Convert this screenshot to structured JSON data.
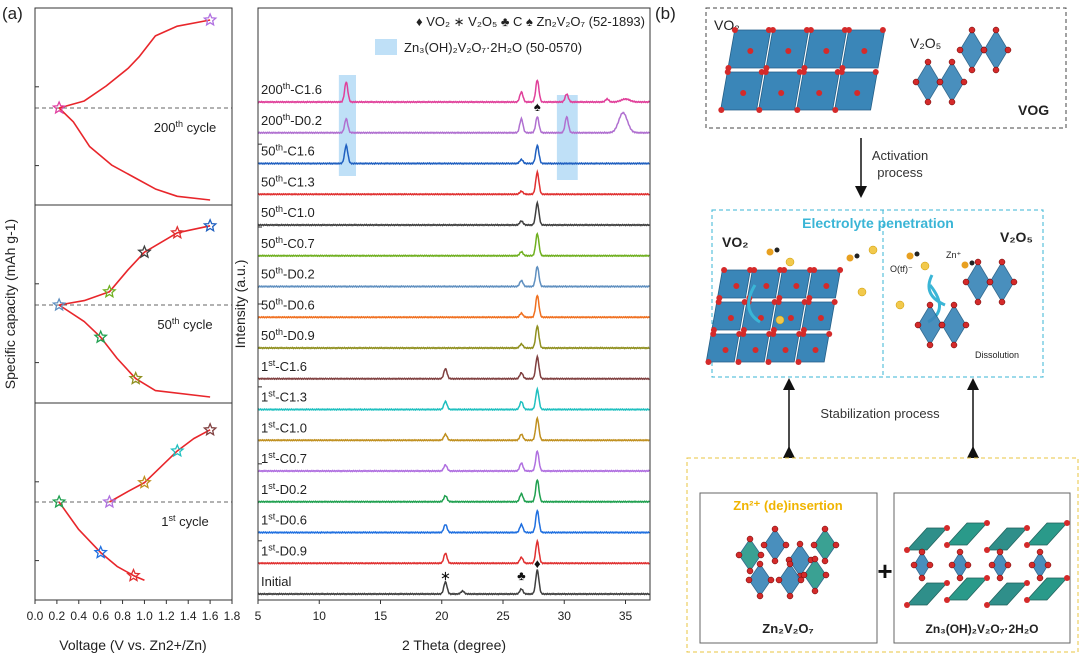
{
  "panel_labels": {
    "a": "(a)",
    "b": "(b)"
  },
  "chart_data": [
    {
      "type": "line",
      "xlabel": "Voltage (V vs. Zn2+/Zn)",
      "ylabel": "Specific capacity (mAh g-1)",
      "xlim": [
        0.0,
        1.8
      ],
      "xticks": [
        "0.0",
        "0.2",
        "0.4",
        "0.6",
        "0.8",
        "1.0",
        "1.2",
        "1.4",
        "1.6",
        "1.8"
      ],
      "curve_color": "#e8262b",
      "panels": [
        {
          "label_pre": "200",
          "label_sup": "th",
          "label_post": " cycle",
          "charge": [
            [
              0.22,
              0
            ],
            [
              0.45,
              0.08
            ],
            [
              0.65,
              0.25
            ],
            [
              0.85,
              0.45
            ],
            [
              0.95,
              0.58
            ],
            [
              1.1,
              0.82
            ],
            [
              1.3,
              0.93
            ],
            [
              1.6,
              1.0
            ]
          ],
          "discharge": [
            [
              0.22,
              0
            ],
            [
              0.35,
              -0.15
            ],
            [
              0.5,
              -0.42
            ],
            [
              0.7,
              -0.62
            ],
            [
              0.9,
              -0.75
            ],
            [
              1.1,
              -0.88
            ],
            [
              1.3,
              -0.96
            ],
            [
              1.6,
              -1.0
            ]
          ],
          "stars": [
            [
              0.22,
              0,
              "#e040a0"
            ],
            [
              1.6,
              1.0,
              "#b070e0"
            ]
          ]
        },
        {
          "label_pre": "50",
          "label_sup": "th",
          "label_post": " cycle",
          "charge": [
            [
              0.22,
              0
            ],
            [
              0.45,
              0.05
            ],
            [
              0.68,
              0.15
            ],
            [
              0.85,
              0.4
            ],
            [
              1.0,
              0.6
            ],
            [
              1.3,
              0.82
            ],
            [
              1.6,
              0.9
            ]
          ],
          "discharge": [
            [
              0.22,
              0
            ],
            [
              0.45,
              -0.18
            ],
            [
              0.6,
              -0.35
            ],
            [
              0.75,
              -0.58
            ],
            [
              0.92,
              -0.8
            ],
            [
              1.1,
              -0.93
            ],
            [
              1.6,
              -1.0
            ]
          ],
          "stars": [
            [
              0.22,
              0,
              "#6090c0"
            ],
            [
              0.6,
              -0.35,
              "#20a050"
            ],
            [
              0.68,
              0.15,
              "#70b020"
            ],
            [
              0.92,
              -0.8,
              "#909020"
            ],
            [
              1.0,
              0.6,
              "#404040"
            ],
            [
              1.3,
              0.82,
              "#e03030"
            ],
            [
              1.6,
              0.9,
              "#2060c0"
            ]
          ]
        },
        {
          "label_pre": "1",
          "label_sup": "st",
          "label_post": " cycle",
          "charge": [
            [
              0.68,
              0
            ],
            [
              0.85,
              0.12
            ],
            [
              1.0,
              0.22
            ],
            [
              1.15,
              0.4
            ],
            [
              1.3,
              0.58
            ],
            [
              1.45,
              0.72
            ],
            [
              1.6,
              0.82
            ]
          ],
          "discharge": [
            [
              0.22,
              0
            ],
            [
              0.4,
              -0.3
            ],
            [
              0.6,
              -0.55
            ],
            [
              0.75,
              -0.7
            ],
            [
              0.9,
              -0.8
            ],
            [
              1.0,
              -0.85
            ]
          ],
          "stars": [
            [
              0.22,
              0,
              "#20a050"
            ],
            [
              0.6,
              -0.55,
              "#2070e0"
            ],
            [
              0.68,
              0,
              "#b070e0"
            ],
            [
              0.9,
              -0.8,
              "#e03030"
            ],
            [
              1.0,
              0.22,
              "#c09020"
            ],
            [
              1.3,
              0.58,
              "#20c0c0"
            ],
            [
              1.6,
              0.82,
              "#804040"
            ]
          ]
        }
      ]
    },
    {
      "type": "line",
      "xlabel": "2 Theta (degree)",
      "ylabel": "Intensity (a.u.)",
      "xlim": [
        5,
        37
      ],
      "xticks": [
        5,
        10,
        15,
        20,
        25,
        30,
        35
      ],
      "legend": {
        "markers": "♦ VO₂  ∗ V₂O₅  ♣ C  ♠ Zn₂V₂O₇ (52-1893)",
        "shade_label": "Zn₃(OH)₂V₂O₇·2H₂O (50-0570)",
        "shade_color": "#bfe0f7"
      },
      "shaded_ranges": [
        [
          11.6,
          13.0
        ],
        [
          29.4,
          31.1
        ]
      ],
      "annotations": [
        {
          "symbol": "♦",
          "x": 27.8,
          "trace": "Initial"
        },
        {
          "symbol": "∗",
          "x": 20.3,
          "trace": "Initial"
        },
        {
          "symbol": "♣",
          "x": 26.5,
          "trace": "Initial"
        },
        {
          "symbol": "♠",
          "x": 27.8,
          "trace": "200th-D0.2"
        }
      ],
      "series": [
        {
          "pre": "200",
          "sup": "th",
          "post": "-C1.6",
          "color": "#e0409a",
          "peaks": [
            [
              12.2,
              20
            ],
            [
              26.5,
              10
            ],
            [
              27.8,
              22
            ],
            [
              30.2,
              8
            ],
            [
              33.5,
              3
            ],
            [
              35,
              3
            ]
          ]
        },
        {
          "pre": "200",
          "sup": "th",
          "post": "-D0.2",
          "color": "#b070d0",
          "peaks": [
            [
              12.2,
              14
            ],
            [
              26.5,
              14
            ],
            [
              27.8,
              16
            ],
            [
              30.2,
              16
            ],
            [
              34.8,
              20
            ]
          ]
        },
        {
          "pre": "50",
          "sup": "th",
          "post": "-C1.6",
          "color": "#2060c0",
          "peaks": [
            [
              12.2,
              18
            ],
            [
              26.5,
              4
            ],
            [
              27.8,
              18
            ]
          ]
        },
        {
          "pre": "50",
          "sup": "th",
          "post": "-C1.3",
          "color": "#e03030",
          "peaks": [
            [
              26.5,
              3
            ],
            [
              27.8,
              22
            ]
          ]
        },
        {
          "pre": "50",
          "sup": "th",
          "post": "-C1.0",
          "color": "#404040",
          "peaks": [
            [
              26.5,
              4
            ],
            [
              27.8,
              22
            ]
          ]
        },
        {
          "pre": "50",
          "sup": "th",
          "post": "-C0.7",
          "color": "#70b020",
          "peaks": [
            [
              26.5,
              4
            ],
            [
              27.8,
              22
            ]
          ]
        },
        {
          "pre": "50",
          "sup": "th",
          "post": "-D0.2",
          "color": "#6090c0",
          "peaks": [
            [
              26.5,
              6
            ],
            [
              27.8,
              20
            ]
          ]
        },
        {
          "pre": "50",
          "sup": "th",
          "post": "-D0.6",
          "color": "#f07020",
          "peaks": [
            [
              26.5,
              4
            ],
            [
              27.8,
              22
            ]
          ]
        },
        {
          "pre": "50",
          "sup": "th",
          "post": "-D0.9",
          "color": "#909020",
          "peaks": [
            [
              26.5,
              4
            ],
            [
              27.8,
              22
            ]
          ]
        },
        {
          "pre": "1",
          "sup": "st",
          "post": "-C1.6",
          "color": "#804040",
          "peaks": [
            [
              20.3,
              10
            ],
            [
              26.5,
              6
            ],
            [
              27.8,
              22
            ]
          ]
        },
        {
          "pre": "1",
          "sup": "st",
          "post": "-C1.3",
          "color": "#20c0c0",
          "peaks": [
            [
              20.3,
              8
            ],
            [
              26.5,
              8
            ],
            [
              27.8,
              20
            ]
          ]
        },
        {
          "pre": "1",
          "sup": "st",
          "post": "-C1.0",
          "color": "#c09020",
          "peaks": [
            [
              20.3,
              6
            ],
            [
              26.5,
              6
            ],
            [
              27.8,
              22
            ]
          ]
        },
        {
          "pre": "1",
          "sup": "st",
          "post": "-C0.7",
          "color": "#b070e0",
          "peaks": [
            [
              20.3,
              6
            ],
            [
              26.5,
              8
            ],
            [
              27.8,
              20
            ]
          ]
        },
        {
          "pre": "1",
          "sup": "st",
          "post": "-D0.2",
          "color": "#20a050",
          "peaks": [
            [
              20.3,
              6
            ],
            [
              26.5,
              8
            ],
            [
              27.8,
              22
            ]
          ]
        },
        {
          "pre": "1",
          "sup": "st",
          "post": "-D0.6",
          "color": "#2070e0",
          "peaks": [
            [
              20.3,
              8
            ],
            [
              26.5,
              8
            ],
            [
              27.8,
              22
            ]
          ]
        },
        {
          "pre": "1",
          "sup": "st",
          "post": "-D0.9",
          "color": "#e03030",
          "peaks": [
            [
              20.3,
              10
            ],
            [
              26.5,
              6
            ],
            [
              27.8,
              22
            ]
          ]
        },
        {
          "pre": "Initial",
          "sup": "",
          "post": "",
          "color": "#404040",
          "peaks": [
            [
              20.3,
              12
            ],
            [
              21.7,
              3
            ],
            [
              26.5,
              5
            ],
            [
              27.8,
              24
            ]
          ]
        }
      ]
    }
  ],
  "schematic": {
    "top": {
      "vo2": "VO₂",
      "v2o5": "V₂O₅",
      "vog": "VOG"
    },
    "activation": "Activation\nprocess",
    "middle": {
      "title": "Electrolyte penetration",
      "vo2": "VO₂",
      "v2o5": "V₂O₅",
      "zn": "Zn⁺",
      "otf": "O(tf)⁻",
      "dissolution": "Dissolution"
    },
    "stabilization": "Stabilization process",
    "bottom": {
      "insertion": "Zn²⁺ (de)insertion",
      "left_name": "Zn₂V₂O₇",
      "plus": "+",
      "right_name": "Zn₃(OH)₂V₂O₇·2H₂O"
    },
    "colors": {
      "polyhedra": "#3a86b8",
      "oxygen": "#d42a2a",
      "cyan": "#3ab5d6",
      "yellow": "#f2c94c",
      "teal": "#2a9a8a"
    }
  }
}
